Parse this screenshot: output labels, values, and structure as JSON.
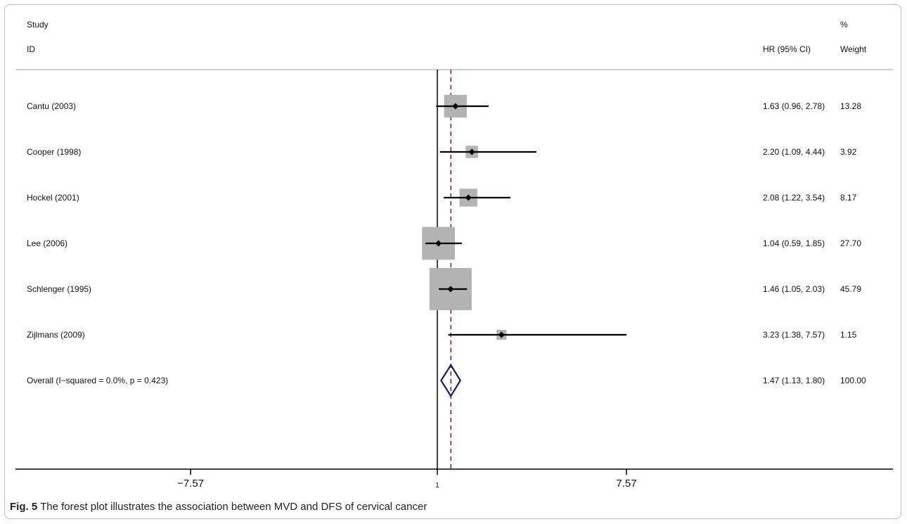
{
  "header": {
    "study": "Study",
    "id": "ID",
    "hr": "HR (95% CI)",
    "pct": "%",
    "weight": "Weight"
  },
  "chart_data": {
    "type": "forest",
    "title": "",
    "xlabel": "",
    "ylabel": "",
    "x_ticks": [
      "-7.57",
      "1",
      "7.57"
    ],
    "x_tick_values": [
      -7.57,
      1,
      7.57
    ],
    "reference_value": 1,
    "overall_line_value": 1.47,
    "rows": [
      {
        "study": "Cantu (2003)",
        "hr": 1.63,
        "lo": 0.96,
        "hi": 2.78,
        "hr_text": "1.63 (0.96, 2.78)",
        "weight": 13.28,
        "weight_text": "13.28"
      },
      {
        "study": "Cooper (1998)",
        "hr": 2.2,
        "lo": 1.09,
        "hi": 4.44,
        "hr_text": "2.20 (1.09, 4.44)",
        "weight": 3.92,
        "weight_text": "3.92"
      },
      {
        "study": "Hockel (2001)",
        "hr": 2.08,
        "lo": 1.22,
        "hi": 3.54,
        "hr_text": "2.08 (1.22, 3.54)",
        "weight": 8.17,
        "weight_text": "8.17"
      },
      {
        "study": "Lee (2006)",
        "hr": 1.04,
        "lo": 0.59,
        "hi": 1.85,
        "hr_text": "1.04 (0.59, 1.85)",
        "weight": 27.7,
        "weight_text": "27.70"
      },
      {
        "study": "Schlenger (1995)",
        "hr": 1.46,
        "lo": 1.05,
        "hi": 2.03,
        "hr_text": "1.46 (1.05, 2.03)",
        "weight": 45.79,
        "weight_text": "45.79"
      },
      {
        "study": "Zijlmans (2009)",
        "hr": 3.23,
        "lo": 1.38,
        "hi": 7.57,
        "hr_text": "3.23 (1.38, 7.57)",
        "weight": 1.15,
        "weight_text": "1.15"
      }
    ],
    "overall": {
      "label": "Overall  (I−squared = 0.0%, p = 0.423)",
      "hr": 1.47,
      "lo": 1.13,
      "hi": 1.8,
      "hr_text": "1.47 (1.13, 1.80)",
      "weight_text": "100.00"
    },
    "colors": {
      "box": "#b3b3b3",
      "line": "#000000",
      "diamond": "#1a1f5e",
      "dashed": "#8b1a2b"
    }
  },
  "caption": {
    "fig": "Fig. 5",
    "text": "The forest plot illustrates the association between MVD and DFS of cervical cancer"
  }
}
